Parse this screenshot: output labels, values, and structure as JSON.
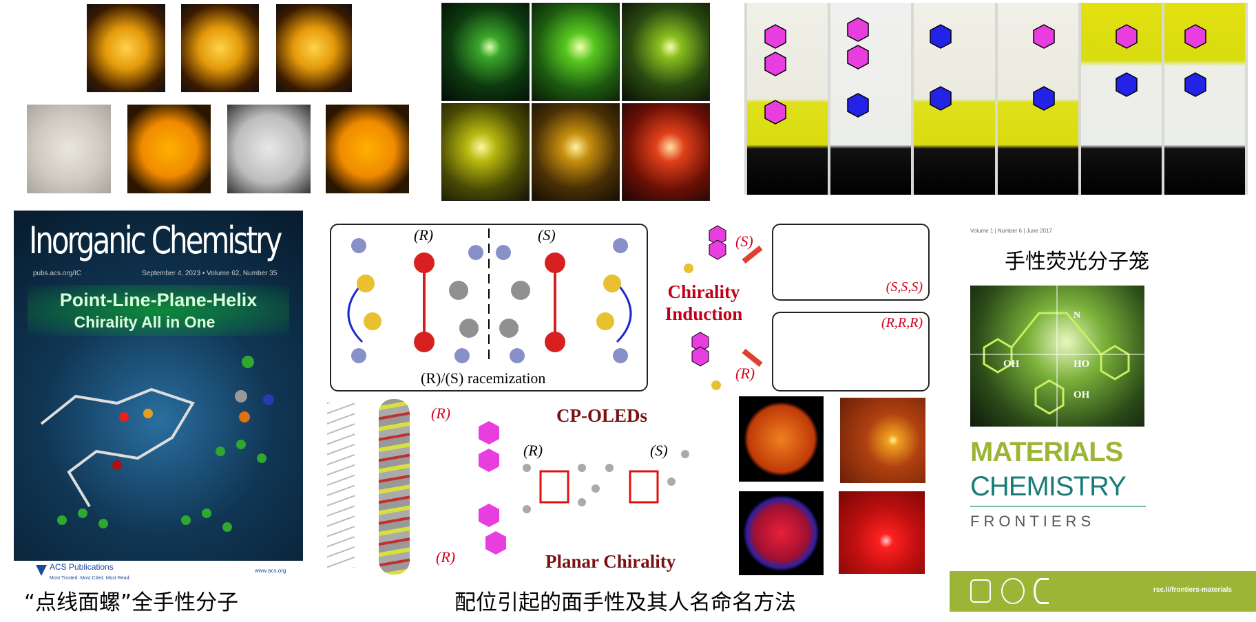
{
  "inorganic_cover": {
    "journal": "Inorganic Chemistry",
    "url": "pubs.acs.org/IC",
    "issue": "September 4, 2023 • Volume 62, Number 35",
    "headline_1": "Point-Line-Plane-Helix",
    "headline_2": "Chirality All in One",
    "publisher": "ACS Publications",
    "publisher_tagline": "Most Trusted. Most Cited. Most Read.",
    "publisher_url": "www.acs.org"
  },
  "diagram": {
    "r_label": "(R)",
    "s_label": "(S)",
    "racemization": "(R)/(S) racemization",
    "induction_1": "Chirality",
    "induction_2": "Induction",
    "s_small": "(S)",
    "r_small": "(R)",
    "sss": "(S,S,S)",
    "rrr": "(R,R,R)",
    "cp_oleds": "CP-OLEDs",
    "planar": "Planar Chirality",
    "helix_r1": "(R)",
    "helix_r2": "(R)",
    "mol_r": "(R)",
    "mol_s": "(S)"
  },
  "mcf_cover": {
    "issue": "Volume 1 | Number 6 | June 2017",
    "title_cn": "手性荧光分子笼",
    "word1": "MATERIALS",
    "word2": "CHEMISTRY",
    "word3": "FRONTIERS",
    "url": "rsc.li/frontiers-materials",
    "oh1": "OH",
    "oh2": "HO",
    "oh3": "OH",
    "n": "N",
    "green": "#9cb536",
    "teal": "#1a7c78"
  },
  "captions": {
    "left": "“点线面螺”全手性分子",
    "center": "配位引起的面手性及其人名命名方法"
  },
  "colors": {
    "magenta": "#e83ee0",
    "blue": "#2323e8",
    "red_label": "#d4001c",
    "dark_red_text": "#7a1010"
  }
}
